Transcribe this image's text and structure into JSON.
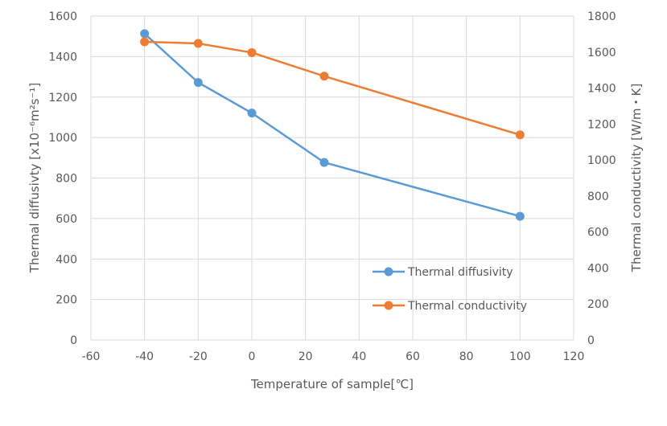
{
  "chart_data": {
    "type": "line",
    "title": "",
    "xlabel": "Temperature of sample[℃]",
    "ylabel": "Thermal diffusivty [x10⁻⁶m²s⁻¹]",
    "y2label": "Thermal conductivity [W/m・K]",
    "xlim": [
      -60,
      120
    ],
    "ylim": [
      0,
      1600
    ],
    "y2lim": [
      0,
      1800
    ],
    "xticks": [
      -60,
      -40,
      -20,
      0,
      20,
      40,
      60,
      80,
      100,
      120
    ],
    "yticks": [
      0,
      200,
      400,
      600,
      800,
      1000,
      1200,
      1400,
      1600
    ],
    "y2ticks": [
      0,
      200,
      400,
      600,
      800,
      1000,
      1200,
      1400,
      1600,
      1800
    ],
    "grid": true,
    "legend_position": "bottom-right-inside",
    "series": [
      {
        "name": "Thermal diffusivity",
        "axis": "left",
        "color": "#5B9BD5",
        "x": [
          -40,
          -20,
          0,
          27,
          100
        ],
        "y": [
          1513,
          1272,
          1121,
          877,
          611
        ]
      },
      {
        "name": "Thermal conductivity",
        "axis": "right",
        "color": "#ED7D31",
        "x": [
          -40,
          -20,
          0,
          27,
          100
        ],
        "y": [
          1657,
          1648,
          1597,
          1466,
          1140
        ]
      }
    ]
  }
}
